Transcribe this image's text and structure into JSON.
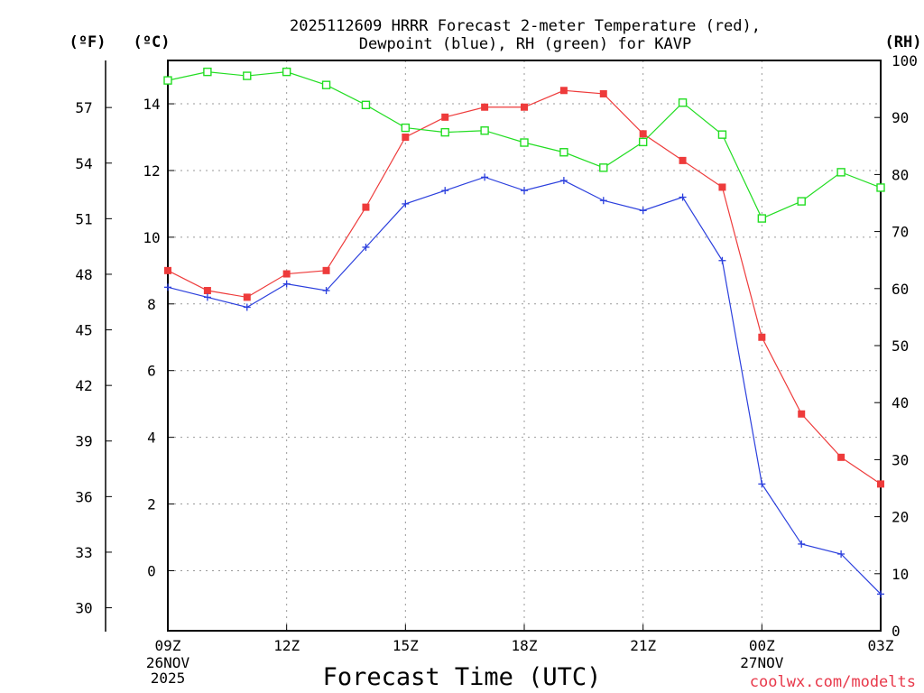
{
  "chart_data": {
    "type": "line",
    "title_line1": "2025112609 HRRR Forecast 2-meter Temperature (red),",
    "title_line2": "Dewpoint (blue), RH (green) for KAVP",
    "xlabel": "Forecast Time (UTC)",
    "unit_f": "(ºF)",
    "unit_c": "(ºC)",
    "unit_rh": "(RH)",
    "credit": "coolwx.com/modelts",
    "x_hours": [
      0,
      1,
      2,
      3,
      4,
      5,
      6,
      7,
      8,
      9,
      10,
      11,
      12,
      13,
      14,
      15,
      16,
      17,
      18
    ],
    "x_ticks": [
      {
        "hour": 0,
        "label": "09Z",
        "sub1": "26NOV",
        "sub2": "2025"
      },
      {
        "hour": 3,
        "label": "12Z",
        "sub1": "",
        "sub2": ""
      },
      {
        "hour": 6,
        "label": "15Z",
        "sub1": "",
        "sub2": ""
      },
      {
        "hour": 9,
        "label": "18Z",
        "sub1": "",
        "sub2": ""
      },
      {
        "hour": 12,
        "label": "21Z",
        "sub1": "",
        "sub2": ""
      },
      {
        "hour": 15,
        "label": "00Z",
        "sub1": "27NOV",
        "sub2": ""
      },
      {
        "hour": 18,
        "label": "03Z",
        "sub1": "",
        "sub2": ""
      }
    ],
    "celsius_axis": {
      "range": [
        -1.8,
        15.3
      ],
      "ticks": [
        "0",
        "2",
        "4",
        "6",
        "8",
        "10",
        "12",
        "14"
      ]
    },
    "fahrenheit_axis": {
      "ticks": [
        "30",
        "33",
        "36",
        "39",
        "42",
        "45",
        "48",
        "51",
        "54",
        "57"
      ]
    },
    "rh_axis": {
      "range": [
        0,
        100
      ],
      "ticks": [
        "0",
        "10",
        "20",
        "30",
        "40",
        "50",
        "60",
        "70",
        "80",
        "90",
        "100"
      ]
    },
    "series": [
      {
        "name": "Temperature",
        "unit": "C",
        "color": "#ee3b3b",
        "marker": "filled-square",
        "values": [
          9.0,
          8.4,
          8.2,
          8.9,
          9.0,
          10.9,
          13.0,
          13.6,
          13.9,
          13.9,
          14.4,
          14.3,
          13.1,
          12.3,
          11.5,
          7.0,
          4.7,
          3.4,
          2.6
        ]
      },
      {
        "name": "Dewpoint",
        "unit": "C",
        "color": "#2b3fdd",
        "marker": "plus",
        "values": [
          8.5,
          8.2,
          7.9,
          8.6,
          8.4,
          9.7,
          11.0,
          11.4,
          11.8,
          11.4,
          11.7,
          11.1,
          10.8,
          11.2,
          9.3,
          2.6,
          0.8,
          0.5,
          -0.7
        ]
      },
      {
        "name": "RH",
        "unit": "%",
        "color": "#22dd22",
        "marker": "open-square",
        "values": [
          96.5,
          98.0,
          97.3,
          98.0,
          95.7,
          92.2,
          88.2,
          87.4,
          87.7,
          85.6,
          83.9,
          81.2,
          85.7,
          92.6,
          87.0,
          72.3,
          75.3,
          80.4,
          77.7
        ]
      }
    ]
  }
}
